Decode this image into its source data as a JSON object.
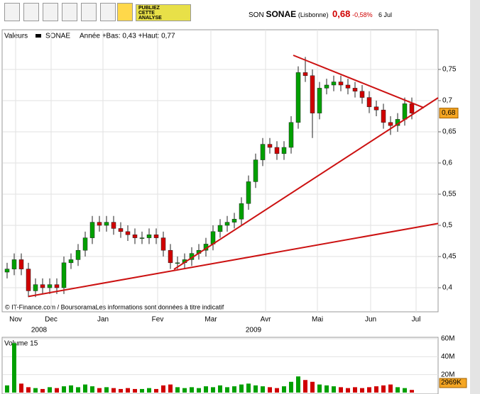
{
  "toolbar": {
    "button": [
      "PUBLIEZ",
      "CETTE",
      "ANALYSE"
    ]
  },
  "header": {
    "prefix": "SON",
    "name": "SONAE",
    "market": "(Lisbonne)",
    "price": "0,68",
    "change": "-0,58%",
    "date": "6 Jul"
  },
  "chart_data": {
    "type": "candlestick",
    "legend": {
      "label": "Valeurs",
      "series": "SONAE",
      "range": "Année +Bas: 0,43 +Haut: 0,77"
    },
    "open": [
      0.425,
      0.43,
      0.445,
      0.43,
      0.395,
      0.405,
      0.4,
      0.405,
      0.4,
      0.44,
      0.445,
      0.46,
      0.48,
      0.505,
      0.5,
      0.505,
      0.495,
      0.49,
      0.485,
      0.48,
      0.48,
      0.485,
      0.48,
      0.46,
      0.44,
      0.44,
      0.445,
      0.455,
      0.46,
      0.47,
      0.49,
      0.5,
      0.505,
      0.51,
      0.535,
      0.57,
      0.605,
      0.63,
      0.625,
      0.615,
      0.625,
      0.665,
      0.745,
      0.74,
      0.68,
      0.72,
      0.725,
      0.73,
      0.725,
      0.72,
      0.715,
      0.705,
      0.69,
      0.685,
      0.665,
      0.66,
      0.67,
      0.695
    ],
    "high": [
      0.44,
      0.455,
      0.455,
      0.44,
      0.415,
      0.415,
      0.415,
      0.415,
      0.45,
      0.455,
      0.47,
      0.49,
      0.515,
      0.515,
      0.515,
      0.515,
      0.505,
      0.5,
      0.495,
      0.49,
      0.495,
      0.495,
      0.49,
      0.47,
      0.45,
      0.455,
      0.465,
      0.47,
      0.48,
      0.5,
      0.51,
      0.515,
      0.52,
      0.545,
      0.58,
      0.615,
      0.64,
      0.64,
      0.635,
      0.635,
      0.675,
      0.755,
      0.77,
      0.75,
      0.73,
      0.735,
      0.74,
      0.74,
      0.735,
      0.73,
      0.725,
      0.715,
      0.7,
      0.695,
      0.675,
      0.68,
      0.705,
      0.705
    ],
    "low": [
      0.415,
      0.42,
      0.42,
      0.385,
      0.385,
      0.39,
      0.39,
      0.39,
      0.39,
      0.43,
      0.435,
      0.45,
      0.47,
      0.49,
      0.49,
      0.485,
      0.48,
      0.475,
      0.47,
      0.47,
      0.47,
      0.47,
      0.45,
      0.43,
      0.43,
      0.43,
      0.435,
      0.445,
      0.45,
      0.46,
      0.48,
      0.49,
      0.495,
      0.5,
      0.525,
      0.56,
      0.595,
      0.615,
      0.605,
      0.605,
      0.615,
      0.655,
      0.73,
      0.64,
      0.67,
      0.71,
      0.715,
      0.715,
      0.71,
      0.705,
      0.695,
      0.68,
      0.675,
      0.655,
      0.645,
      0.65,
      0.66,
      0.67
    ],
    "close": [
      0.43,
      0.445,
      0.43,
      0.395,
      0.405,
      0.4,
      0.405,
      0.4,
      0.44,
      0.445,
      0.46,
      0.48,
      0.505,
      0.5,
      0.505,
      0.495,
      0.49,
      0.485,
      0.48,
      0.48,
      0.485,
      0.48,
      0.46,
      0.44,
      0.44,
      0.445,
      0.455,
      0.46,
      0.47,
      0.49,
      0.5,
      0.505,
      0.51,
      0.535,
      0.57,
      0.605,
      0.63,
      0.625,
      0.615,
      0.625,
      0.665,
      0.745,
      0.74,
      0.68,
      0.72,
      0.725,
      0.73,
      0.725,
      0.72,
      0.715,
      0.705,
      0.69,
      0.685,
      0.665,
      0.66,
      0.67,
      0.695,
      0.68
    ],
    "last_price": {
      "value": 0.68,
      "label": "0,68"
    },
    "xlim": [
      -0.6,
      60.7
    ],
    "xticks": [
      {
        "value": 1.2,
        "label": "Nov"
      },
      {
        "value": 6.2,
        "label": "Dec"
      },
      {
        "value": 13.5,
        "label": "Jan"
      },
      {
        "value": 21.2,
        "label": "Fev"
      },
      {
        "value": 28.7,
        "label": "Mar"
      },
      {
        "value": 36.4,
        "label": "Avr"
      },
      {
        "value": 43.7,
        "label": "Mai"
      },
      {
        "value": 51.2,
        "label": "Jun"
      },
      {
        "value": 57.6,
        "label": "Jul"
      }
    ],
    "year_labels": [
      {
        "value": 4.5,
        "label": "2008"
      },
      {
        "value": 34.7,
        "label": "2009"
      }
    ],
    "ylim": [
      0.3614,
      0.8136
    ],
    "yticks": [
      {
        "value": 0.4,
        "label": "0,4"
      },
      {
        "value": 0.45,
        "label": "0,45"
      },
      {
        "value": 0.5,
        "label": "0,5"
      },
      {
        "value": 0.55,
        "label": "0,55"
      },
      {
        "value": 0.6,
        "label": "0,6"
      },
      {
        "value": 0.65,
        "label": "0,65"
      },
      {
        "value": 0.7,
        "label": "0,7"
      },
      {
        "value": 0.75,
        "label": "0,75"
      }
    ],
    "grid": true,
    "up_color": "#00a000",
    "down_color": "#d00000",
    "trend_color": "#cc1111",
    "trendlines": [
      {
        "from": [
          3,
          0.386
        ],
        "to": [
          60.7,
          0.503
        ]
      },
      {
        "from": [
          23.5,
          0.4295
        ],
        "to": [
          60.7,
          0.7045
        ]
      },
      {
        "from": [
          40.3,
          0.7727
        ],
        "to": [
          58.7,
          0.6886
        ]
      }
    ],
    "credit": "© IT-Finance.com / BoursoramaLes informations sont données à titre indicatif",
    "volume": {
      "title": "Volume 15",
      "values": [
        8,
        55,
        10,
        6,
        5,
        4,
        6,
        5,
        7,
        8,
        6,
        9,
        7,
        5,
        6,
        5,
        4,
        5,
        4,
        4,
        5,
        4,
        8,
        9,
        6,
        5,
        6,
        5,
        7,
        6,
        8,
        6,
        7,
        9,
        10,
        8,
        7,
        6,
        5,
        7,
        12,
        18,
        14,
        12,
        9,
        8,
        7,
        6,
        5,
        6,
        5,
        6,
        7,
        8,
        9,
        6,
        5,
        2.969
      ],
      "last": {
        "value": 2.969,
        "label": "2969K"
      },
      "ylim": [
        0,
        60
      ],
      "yticks": [
        {
          "value": 20,
          "label": "20M"
        },
        {
          "value": 40,
          "label": "40M"
        },
        {
          "value": 60,
          "label": "60M"
        }
      ]
    }
  }
}
